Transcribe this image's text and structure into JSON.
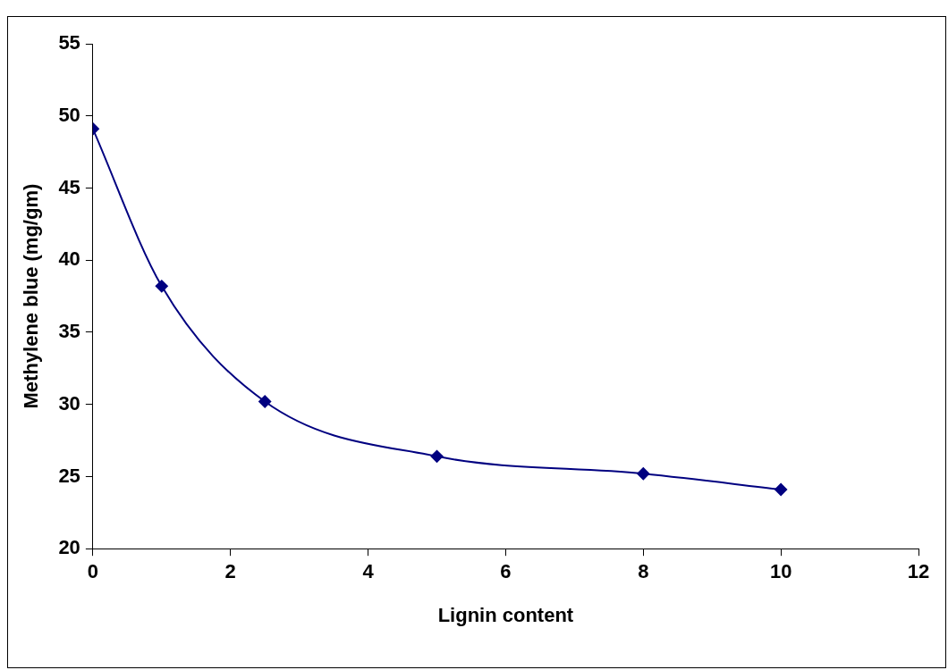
{
  "chart_data": {
    "type": "line",
    "xlabel": "Lignin content",
    "ylabel": "Methylene blue (mg/gm)",
    "x": [
      0,
      1,
      2.5,
      5,
      8,
      10
    ],
    "series": [
      {
        "color": "#000080",
        "values": [
          49.1,
          38.2,
          30.2,
          26.4,
          25.2,
          24.1
        ]
      }
    ],
    "xlim": [
      0,
      12
    ],
    "xticks": [
      0,
      2,
      4,
      6,
      8,
      10,
      12
    ],
    "ylim": [
      20,
      55
    ],
    "yticks": [
      20,
      25,
      30,
      35,
      40,
      45,
      50,
      55
    ],
    "grid": false,
    "legend": false,
    "marker": "diamond",
    "line_style": "solid"
  }
}
